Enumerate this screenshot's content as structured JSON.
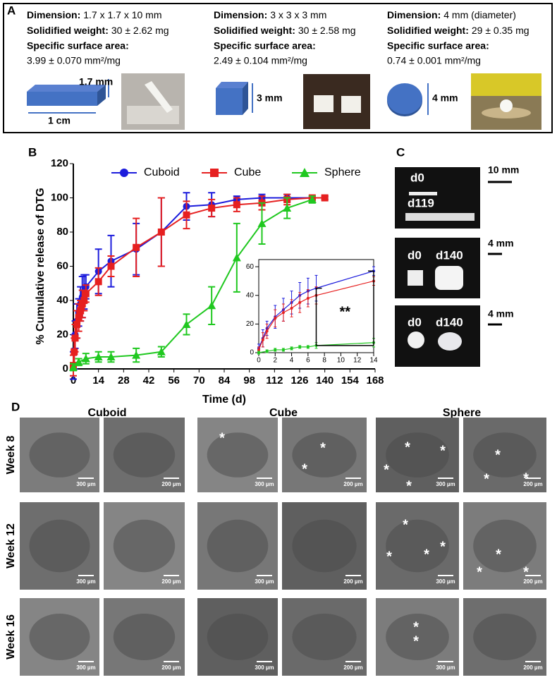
{
  "panel_a": {
    "letter": "A",
    "labels": {
      "dimension": "Dimension:",
      "weight": "Solidified weight:",
      "area": "Specific surface area:"
    },
    "items": [
      {
        "dimension": "1.7 x 1.7 x 10 mm",
        "weight": "30 ± 2.62 mg",
        "area": "3.99 ± 0.070 mm²/mg",
        "size_labels": [
          "1.7 mm",
          "1 cm"
        ]
      },
      {
        "dimension": "3 x 3 x 3 mm",
        "weight": "30 ± 2.58 mg",
        "area": "2.49 ± 0.104 mm²/mg",
        "size_labels": [
          "3 mm"
        ]
      },
      {
        "dimension": "4 mm (diameter)",
        "weight": "29 ± 0.35 mg",
        "area": "0.74 ± 0.001 mm²/mg",
        "size_labels": [
          "4 mm"
        ]
      }
    ]
  },
  "panel_b": {
    "letter": "B"
  },
  "chart_data": [
    {
      "type": "line",
      "x_label": "Time (d)",
      "y_label": "% Cumulative release of DTG",
      "xlim": [
        0,
        168
      ],
      "xticks": [
        0,
        14,
        28,
        42,
        56,
        70,
        84,
        98,
        112,
        126,
        140,
        154,
        168
      ],
      "ylim": [
        0,
        120
      ],
      "yticks": [
        0,
        20,
        40,
        60,
        80,
        100,
        120
      ],
      "legend": "top",
      "series": [
        {
          "name": "Cuboid",
          "color": "#1c1cdc",
          "marker": "circle",
          "x": [
            0,
            0.5,
            1,
            2,
            3,
            4,
            5,
            6,
            7,
            14,
            21,
            35,
            49,
            63,
            77,
            91,
            105,
            119,
            133,
            140
          ],
          "values": [
            2,
            10,
            20,
            28,
            33,
            38,
            42,
            45,
            48,
            57,
            63,
            70,
            80,
            95,
            96,
            99,
            100,
            100,
            100,
            100
          ],
          "errors": [
            8,
            10,
            8,
            10,
            8,
            10,
            12,
            10,
            7,
            13,
            15,
            15,
            20,
            8,
            7,
            2,
            2,
            2,
            1,
            1
          ]
        },
        {
          "name": "Cube",
          "color": "#e62020",
          "marker": "square",
          "x": [
            0,
            0.5,
            1,
            2,
            3,
            4,
            5,
            6,
            7,
            14,
            21,
            35,
            49,
            63,
            77,
            91,
            105,
            119,
            133,
            140
          ],
          "values": [
            2,
            10,
            18,
            26,
            30,
            34,
            38,
            40,
            44,
            51,
            60,
            71,
            80,
            90,
            94,
            96,
            97,
            99,
            100,
            100
          ],
          "errors": [
            6,
            8,
            8,
            8,
            8,
            6,
            8,
            6,
            5,
            8,
            6,
            17,
            20,
            8,
            5,
            4,
            4,
            3,
            1,
            1
          ]
        },
        {
          "name": "Sphere",
          "color": "#20c820",
          "marker": "triangle",
          "x": [
            0,
            3,
            7,
            14,
            21,
            35,
            49,
            63,
            77,
            91,
            105,
            119,
            133
          ],
          "values": [
            1,
            4,
            6,
            7,
            7,
            8,
            10,
            26,
            37,
            65,
            85,
            94,
            99
          ],
          "errors": [
            2,
            2,
            3,
            3,
            3,
            4,
            3,
            6,
            11,
            20,
            12,
            6,
            2
          ]
        }
      ]
    },
    {
      "type": "line",
      "annotation": "**",
      "xlim": [
        0,
        14
      ],
      "xticks": [
        0,
        2,
        4,
        6,
        8,
        10,
        12,
        14
      ],
      "ylim": [
        0,
        65
      ],
      "yticks": [
        0,
        20,
        40,
        60
      ],
      "series": [
        {
          "color": "#1c1cdc",
          "x": [
            0,
            0.5,
            1,
            2,
            3,
            4,
            5,
            6,
            7,
            14
          ],
          "values": [
            3,
            10,
            17,
            25,
            30,
            35,
            40,
            43,
            45,
            57
          ],
          "errors": [
            3,
            6,
            5,
            8,
            8,
            8,
            9,
            9,
            9,
            3
          ]
        },
        {
          "color": "#e62020",
          "x": [
            0,
            0.5,
            1,
            2,
            3,
            4,
            5,
            6,
            7,
            14
          ],
          "values": [
            2,
            9,
            15,
            24,
            28,
            31,
            35,
            38,
            40,
            50
          ],
          "errors": [
            2,
            5,
            5,
            6,
            6,
            6,
            7,
            6,
            6,
            3
          ]
        },
        {
          "color": "#20c820",
          "x": [
            0,
            1,
            2,
            3,
            4,
            5,
            6,
            7,
            14
          ],
          "values": [
            0,
            1,
            2,
            2,
            3,
            4,
            4,
            5,
            7
          ],
          "errors": [
            1,
            1,
            1,
            1,
            1,
            1,
            1,
            2,
            3
          ]
        }
      ]
    }
  ],
  "panel_c": {
    "letter": "C",
    "rows": [
      {
        "labels": [
          "d0",
          "d119"
        ],
        "scale": "10 mm"
      },
      {
        "labels": [
          "d0",
          "d140"
        ],
        "scale": "4 mm"
      },
      {
        "labels": [
          "d0",
          "d140"
        ],
        "scale": "4 mm"
      }
    ]
  },
  "panel_d": {
    "letter": "D",
    "columns": [
      "Cuboid",
      "Cube",
      "Sphere"
    ],
    "rows": [
      "Week 8",
      "Week 12",
      "Week 16"
    ],
    "scale_labels": [
      "300 µm",
      "200 µm"
    ],
    "asterisk": "*"
  }
}
